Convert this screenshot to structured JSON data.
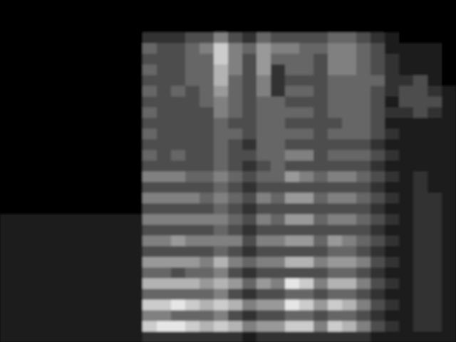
{
  "chart_data": {
    "type": "heatmap",
    "tick_labels": false,
    "values": [
      [
        1,
        1,
        1,
        1,
        1,
        1,
        1,
        1,
        1,
        1,
        1,
        1,
        0,
        0,
        0,
        0,
        0,
        0,
        0,
        0,
        0,
        0,
        0,
        0,
        0,
        0,
        0,
        0,
        0,
        0,
        0,
        0
      ],
      [
        1,
        1,
        1,
        1,
        1,
        1,
        1,
        1,
        1,
        1,
        1,
        1,
        0,
        0,
        0,
        0,
        0,
        0,
        0,
        0,
        0,
        0,
        0,
        0,
        0,
        0,
        0,
        0,
        0,
        0,
        0,
        0
      ],
      [
        1,
        1,
        1,
        1,
        1,
        1,
        1,
        1,
        1,
        1,
        1,
        1,
        0,
        0,
        0,
        0,
        0,
        0,
        0,
        0,
        0,
        0,
        0,
        0,
        0,
        0,
        0,
        0,
        0,
        0,
        0,
        0
      ],
      [
        1,
        1,
        1,
        1,
        1,
        1,
        1,
        1,
        1,
        1,
        1,
        1,
        0,
        0,
        0,
        0,
        0,
        0,
        0,
        0,
        0,
        0,
        0,
        0,
        0,
        0,
        0,
        0,
        0,
        0,
        0,
        0
      ],
      [
        1,
        1,
        1,
        1,
        1,
        1,
        1,
        1,
        1,
        1,
        1,
        1,
        0,
        0,
        0,
        0,
        0,
        0,
        0,
        0,
        0,
        0,
        0,
        0,
        0,
        0,
        0,
        0,
        0,
        0,
        0,
        0
      ],
      [
        1,
        1,
        1,
        1,
        1,
        1,
        1,
        1,
        1,
        1,
        1,
        1,
        0,
        0,
        0,
        0,
        0,
        0,
        0,
        0,
        0,
        0,
        0,
        0,
        0,
        0,
        0,
        0,
        0,
        0,
        0,
        0
      ],
      [
        1,
        1,
        1,
        1,
        1,
        1,
        1,
        1,
        1,
        1,
        1,
        1,
        0,
        0,
        0,
        0,
        0,
        0,
        0,
        0,
        0,
        0,
        0,
        0,
        0,
        0,
        0,
        0,
        0,
        0,
        0,
        0
      ],
      [
        1,
        1,
        1,
        1,
        1,
        1,
        1,
        1,
        1,
        1,
        1,
        1,
        0,
        0,
        0,
        0,
        0,
        0,
        0,
        0,
        0,
        0,
        0,
        0,
        0,
        0,
        0,
        0,
        0,
        0,
        0,
        0
      ],
      [
        1,
        1,
        1,
        1,
        1,
        1,
        1,
        1,
        1,
        1,
        1,
        1,
        0,
        0,
        0,
        0,
        0,
        0,
        0,
        0,
        0,
        0,
        0,
        0,
        0,
        0,
        0,
        0,
        0,
        0,
        0,
        0
      ],
      [
        1,
        1,
        1,
        1,
        1,
        1,
        1,
        1,
        1,
        1,
        1,
        1,
        0,
        0,
        0,
        0,
        0,
        0,
        0,
        0,
        0,
        0,
        0,
        0,
        0,
        0,
        0,
        0,
        0,
        0,
        0,
        0
      ],
      [
        2,
        8,
        5,
        8,
        4,
        7,
        4,
        6,
        3,
        5,
        3,
        5,
        3,
        5,
        3,
        5,
        3,
        4,
        3,
        4,
        3,
        4,
        3,
        4,
        3,
        4,
        3,
        4,
        2,
        0,
        0,
        0
      ],
      [
        2,
        9,
        5,
        8,
        4,
        7,
        4,
        6,
        3,
        5,
        3,
        5,
        3,
        5,
        3,
        5,
        3,
        3,
        3,
        3,
        3,
        3,
        3,
        3,
        3,
        3,
        3,
        3,
        2,
        0,
        0,
        0
      ],
      [
        2,
        9,
        4,
        9,
        4,
        7,
        3,
        6,
        3,
        6,
        3,
        5,
        3,
        5,
        3,
        5,
        3,
        4,
        3,
        3,
        3,
        3,
        3,
        4,
        3,
        3,
        3,
        3,
        2,
        0,
        0,
        0
      ],
      [
        2,
        8,
        4,
        8,
        4,
        7,
        4,
        6,
        3,
        5,
        3,
        5,
        3,
        5,
        3,
        4,
        3,
        3,
        3,
        3,
        3,
        3,
        3,
        3,
        4,
        4,
        4,
        4,
        3,
        0,
        0,
        0
      ],
      [
        2,
        7,
        4,
        7,
        4,
        6,
        4,
        5,
        3,
        5,
        3,
        5,
        3,
        4,
        3,
        4,
        3,
        3,
        3,
        3,
        3,
        3,
        4,
        4,
        4,
        4,
        4,
        5,
        3,
        0,
        0,
        0
      ],
      [
        2,
        8,
        5,
        8,
        5,
        7,
        5,
        7,
        4,
        5,
        4,
        5,
        4,
        5,
        4,
        5,
        4,
        4,
        4,
        4,
        4,
        5,
        5,
        6,
        7,
        7,
        8,
        8,
        5,
        0,
        0,
        0
      ],
      [
        2,
        7,
        3,
        7,
        3,
        6,
        3,
        5,
        3,
        5,
        3,
        4,
        3,
        4,
        3,
        4,
        3,
        3,
        3,
        4,
        3,
        4,
        4,
        4,
        4,
        5,
        5,
        5,
        3,
        0,
        0,
        0
      ],
      [
        1,
        5,
        2,
        5,
        2,
        4,
        2,
        4,
        2,
        3,
        2,
        3,
        2,
        3,
        2,
        3,
        2,
        3,
        2,
        3,
        3,
        3,
        3,
        3,
        3,
        3,
        3,
        4,
        2,
        0,
        0,
        0
      ],
      [
        2,
        6,
        3,
        6,
        3,
        6,
        3,
        5,
        3,
        5,
        3,
        5,
        3,
        5,
        3,
        4,
        3,
        4,
        4,
        4,
        4,
        4,
        4,
        5,
        5,
        6,
        6,
        6,
        4,
        0,
        0,
        0
      ],
      [
        2,
        6,
        3,
        6,
        3,
        5,
        3,
        5,
        3,
        5,
        3,
        4,
        3,
        4,
        3,
        4,
        4,
        4,
        4,
        4,
        4,
        4,
        4,
        2,
        2,
        2,
        4,
        5,
        3,
        0,
        0,
        0
      ],
      [
        2,
        8,
        4,
        9,
        4,
        9,
        3,
        7,
        3,
        6,
        3,
        6,
        3,
        6,
        3,
        6,
        3,
        5,
        3,
        4,
        3,
        4,
        3,
        4,
        3,
        4,
        4,
        5,
        3,
        0,
        0,
        0
      ],
      [
        2,
        8,
        4,
        8,
        4,
        8,
        3,
        7,
        3,
        6,
        3,
        6,
        3,
        6,
        3,
        5,
        3,
        5,
        3,
        4,
        3,
        4,
        3,
        4,
        3,
        4,
        4,
        4,
        3,
        0,
        0,
        0
      ],
      [
        2,
        5,
        3,
        6,
        3,
        5,
        3,
        5,
        3,
        4,
        3,
        4,
        3,
        4,
        3,
        4,
        3,
        3,
        3,
        3,
        3,
        3,
        3,
        3,
        3,
        3,
        3,
        4,
        3,
        0,
        0,
        0
      ],
      [
        2,
        8,
        4,
        8,
        4,
        7,
        4,
        6,
        4,
        6,
        3,
        5,
        3,
        5,
        3,
        5,
        3,
        4,
        3,
        4,
        3,
        4,
        4,
        4,
        4,
        5,
        5,
        5,
        4,
        0,
        0,
        0
      ],
      [
        2,
        7,
        4,
        7,
        4,
        7,
        4,
        6,
        4,
        5,
        3,
        5,
        3,
        5,
        3,
        5,
        3,
        4,
        3,
        4,
        4,
        4,
        4,
        4,
        4,
        5,
        5,
        5,
        4,
        0,
        0,
        0
      ],
      [
        2,
        5,
        3,
        5,
        3,
        5,
        3,
        5,
        3,
        4,
        3,
        4,
        3,
        4,
        3,
        4,
        3,
        4,
        3,
        4,
        4,
        4,
        4,
        4,
        4,
        4,
        4,
        4,
        3,
        0,
        0,
        0
      ],
      [
        1,
        3,
        2,
        3,
        2,
        3,
        2,
        3,
        2,
        3,
        2,
        3,
        2,
        3,
        2,
        3,
        2,
        3,
        2,
        3,
        3,
        3,
        3,
        3,
        4,
        3,
        3,
        3,
        2,
        0,
        0,
        0
      ],
      [
        1,
        2,
        1,
        2,
        1,
        2,
        1,
        2,
        1,
        2,
        1,
        2,
        1,
        2,
        1,
        2,
        1,
        2,
        1,
        2,
        1,
        2,
        1,
        2,
        2,
        2,
        2,
        1,
        1,
        0,
        0,
        0
      ],
      [
        1,
        1,
        1,
        1,
        1,
        1,
        1,
        1,
        1,
        1,
        1,
        1,
        1,
        1,
        1,
        1,
        1,
        1,
        1,
        1,
        1,
        2,
        3,
        3,
        2,
        1,
        1,
        1,
        0,
        0,
        0,
        0
      ],
      [
        1,
        2,
        2,
        2,
        2,
        2,
        2,
        2,
        2,
        2,
        2,
        2,
        2,
        2,
        2,
        2,
        1,
        1,
        1,
        1,
        1,
        3,
        3,
        3,
        3,
        1,
        1,
        1,
        0,
        0,
        0,
        0
      ],
      [
        1,
        2,
        2,
        2,
        2,
        2,
        2,
        2,
        2,
        2,
        2,
        2,
        2,
        2,
        1,
        1,
        1,
        1,
        1,
        1,
        1,
        2,
        3,
        2,
        1,
        1,
        1,
        1,
        0,
        0,
        0,
        0
      ],
      [
        1,
        1,
        1,
        1,
        1,
        1,
        1,
        1,
        1,
        1,
        1,
        1,
        1,
        1,
        1,
        1,
        1,
        1,
        1,
        1,
        1,
        1,
        1,
        1,
        0,
        0,
        0,
        0,
        0,
        0,
        0,
        0
      ]
    ]
  }
}
